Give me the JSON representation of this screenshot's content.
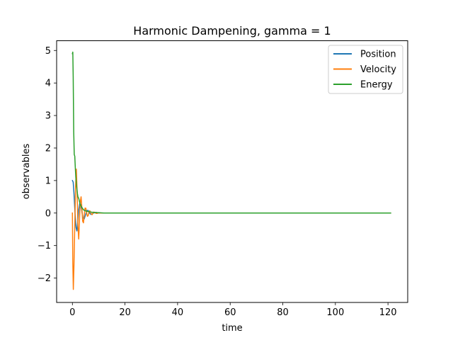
{
  "chart_data": {
    "type": "line",
    "title": "Harmonic Dampening, gamma = 1",
    "xlabel": "time",
    "ylabel": "observables",
    "xlim": [
      -6,
      127.5
    ],
    "ylim": [
      -2.75,
      5.3
    ],
    "xticks": [
      0,
      20,
      40,
      60,
      80,
      100,
      120
    ],
    "yticks": [
      -2,
      -1,
      0,
      1,
      2,
      3,
      4,
      5
    ],
    "xtick_labels": [
      "0",
      "20",
      "40",
      "60",
      "80",
      "100",
      "120"
    ],
    "ytick_labels": [
      "−2",
      "−1",
      "0",
      "1",
      "2",
      "3",
      "4",
      "5"
    ],
    "grid": false,
    "legend_position": "upper right",
    "series": [
      {
        "name": "Position",
        "color": "#1f77b4",
        "x": [
          0,
          0.3,
          0.6,
          1.0,
          1.4,
          1.7,
          2.0,
          2.4,
          2.8,
          3.2,
          3.6,
          4.0,
          4.5,
          5.0,
          5.5,
          6.0,
          6.5,
          7.0,
          7.5,
          8.0,
          9.0,
          10.0,
          11.0,
          12.0,
          121
        ],
        "y": [
          1.0,
          0.95,
          0.6,
          0.0,
          -0.45,
          -0.55,
          -0.3,
          0.1,
          0.3,
          0.25,
          0.05,
          -0.15,
          -0.18,
          -0.05,
          0.08,
          0.08,
          0.0,
          -0.04,
          -0.03,
          0.0,
          0.02,
          0.0,
          0.0,
          0.0,
          0.0
        ]
      },
      {
        "name": "Velocity",
        "color": "#ff7f0e",
        "x": [
          0,
          0.15,
          0.35,
          0.6,
          0.9,
          1.2,
          1.5,
          1.8,
          2.1,
          2.4,
          2.7,
          3.0,
          3.3,
          3.6,
          3.9,
          4.2,
          4.5,
          4.8,
          5.1,
          5.4,
          5.7,
          6.0,
          6.3,
          6.6,
          6.9,
          7.2,
          7.5,
          7.8,
          8.1,
          8.5,
          9.0,
          9.5,
          10.0,
          10.5,
          11.0,
          12.0,
          121
        ],
        "y": [
          0.0,
          -1.5,
          -2.35,
          -1.6,
          -0.4,
          0.8,
          1.35,
          0.6,
          -0.4,
          -0.8,
          -0.2,
          0.35,
          0.5,
          0.15,
          -0.25,
          -0.3,
          -0.05,
          0.15,
          0.15,
          0.0,
          -0.1,
          -0.08,
          0.03,
          0.07,
          0.03,
          -0.03,
          -0.05,
          -0.01,
          0.03,
          0.02,
          -0.01,
          -0.01,
          0.01,
          0.0,
          0.0,
          0.0,
          0.0
        ]
      },
      {
        "name": "Energy",
        "color": "#2ca02c",
        "x": [
          0,
          0.15,
          0.3,
          0.5,
          0.7,
          0.9,
          1.1,
          1.3,
          1.5,
          1.7,
          1.9,
          2.1,
          2.4,
          2.7,
          3.0,
          3.4,
          3.8,
          4.2,
          4.7,
          5.2,
          5.7,
          6.3,
          7.0,
          8.0,
          9.0,
          10.0,
          11.0,
          12.0,
          121
        ],
        "y": [
          4.9,
          4.95,
          4.2,
          2.5,
          1.8,
          1.75,
          1.4,
          1.1,
          0.9,
          0.75,
          0.6,
          0.5,
          0.45,
          0.35,
          0.25,
          0.2,
          0.15,
          0.1,
          0.08,
          0.06,
          0.05,
          0.04,
          0.03,
          0.02,
          0.015,
          0.01,
          0.005,
          0.0,
          0.0
        ]
      }
    ]
  }
}
